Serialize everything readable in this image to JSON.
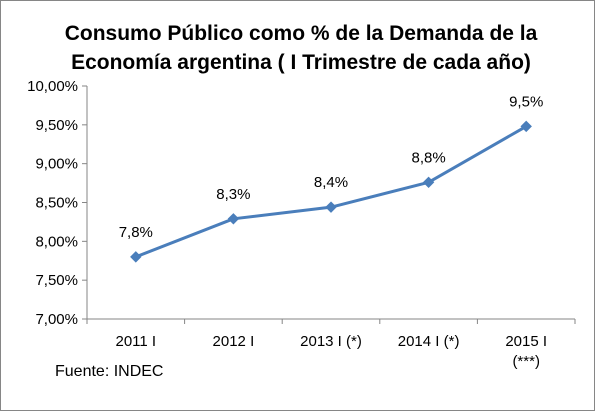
{
  "chart_data": {
    "type": "line",
    "title": "Consumo Público como % de la Demanda de la Economía argentina ( I Trimestre de cada año)",
    "categories": [
      "2011 I",
      "2012 I",
      "2013 I (*)",
      "2014 I (*)",
      "2015 I (***)"
    ],
    "values": [
      7.8,
      8.29,
      8.44,
      8.76,
      9.48
    ],
    "data_labels": [
      "7,8%",
      "8,3%",
      "8,4%",
      "8,8%",
      "9,5%"
    ],
    "ylim": [
      7.0,
      10.0
    ],
    "y_ticks": [
      "7,00%",
      "7,50%",
      "8,00%",
      "8,50%",
      "9,00%",
      "9,50%",
      "10,00%"
    ],
    "grid": false,
    "legend": "none",
    "line_color": "#4a7ebb"
  },
  "source_text": "Fuente: INDEC"
}
